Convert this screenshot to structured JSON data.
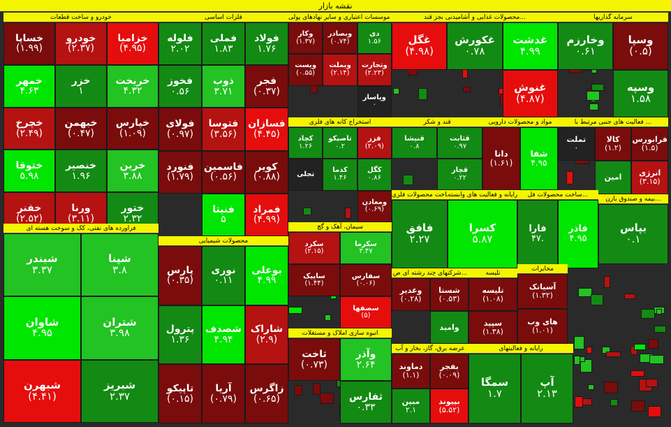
{
  "title": "نقشه بازار",
  "colors": {
    "strong_green": "#00e600",
    "light_green": "#22c322",
    "green": "#138a13",
    "neutral": "#222222",
    "dark_red": "#7a0c0c",
    "red": "#b51212",
    "bright_red": "#e60d0d"
  },
  "chart_data": {
    "type": "heatmap",
    "sectors": [
      {
        "name": "خودرو و ساخت قطعات",
        "tiles": [
          {
            "name": "خزامیا",
            "change": "(۴.۹۵)",
            "value": -4.95
          },
          {
            "name": "خودرو",
            "change": "(۲.۳۷)",
            "value": -2.37
          },
          {
            "name": "خساپا",
            "change": "(۱.۹۹)",
            "value": -1.99
          },
          {
            "name": "خریخت",
            "change": "۴.۳۲",
            "value": 4.32
          },
          {
            "name": "خزر",
            "change": "۱",
            "value": 1.0
          },
          {
            "name": "خمهر",
            "change": "۴.۶۳",
            "value": 4.63
          },
          {
            "name": "خپارس",
            "change": "(۱.۰۹)",
            "value": -1.09
          },
          {
            "name": "خبهمن",
            "change": "(۰.۴۷)",
            "value": -0.47
          },
          {
            "name": "خچرخ",
            "change": "(۲.۴۹)",
            "value": -2.49
          },
          {
            "name": "خرین",
            "change": "۳.۸۸",
            "value": 3.88
          },
          {
            "name": "خنصیر",
            "change": "۱.۹۶",
            "value": 1.96
          },
          {
            "name": "ختوقا",
            "change": "۵.۹۸",
            "value": 5.98
          },
          {
            "name": "ختور",
            "change": "۲.۳۲",
            "value": 2.32
          },
          {
            "name": "ورنا",
            "change": "(۳.۱۱)",
            "value": -3.11
          },
          {
            "name": "خفنر",
            "change": "(۲.۵۲)",
            "value": -2.52
          }
        ]
      },
      {
        "name": "فلزات اساسی",
        "tiles": [
          {
            "name": "فولاد",
            "change": "۱.۷۶",
            "value": 1.76
          },
          {
            "name": "فملی",
            "change": "۱.۸۳",
            "value": 1.83
          },
          {
            "name": "فلوله",
            "change": "۲.۰۲",
            "value": 2.02
          },
          {
            "name": "فجر",
            "change": "(۰.۳۷)",
            "value": -0.37
          },
          {
            "name": "ذوب",
            "change": "۳.۷۱",
            "value": 3.71
          },
          {
            "name": "فخوز",
            "change": "۰.۵۶",
            "value": 0.56
          },
          {
            "name": "فسازان",
            "change": "(۴.۴۵)",
            "value": -4.45
          },
          {
            "name": "فتوسا",
            "change": "(۳.۵۶)",
            "value": -3.56
          },
          {
            "name": "فولای",
            "change": "(۰.۹۷)",
            "value": -0.97
          },
          {
            "name": "کویر",
            "change": "(۰.۸۸)",
            "value": -0.88
          },
          {
            "name": "فاسمین",
            "change": "(۰.۵۶)",
            "value": -0.56
          },
          {
            "name": "فنورد",
            "change": "(۱.۷۹)",
            "value": -1.79
          },
          {
            "name": "فمراد",
            "change": "(۴.۹۹)",
            "value": -4.99
          },
          {
            "name": "فنیتا",
            "change": "۵",
            "value": 5.0
          }
        ]
      },
      {
        "name": "فراورده های نفتی، کک و سوخت هسته ای",
        "tiles": [
          {
            "name": "شپنا",
            "change": "۳.۸",
            "value": 3.8
          },
          {
            "name": "شبندر",
            "change": "۳.۳۷",
            "value": 3.37
          },
          {
            "name": "شتران",
            "change": "۳.۹۸",
            "value": 3.98
          },
          {
            "name": "شاوان",
            "change": "۴.۹۵",
            "value": 4.95
          },
          {
            "name": "شبریز",
            "change": "۲.۳۷",
            "value": 2.37
          },
          {
            "name": "شبهرن",
            "change": "(۴.۴۱)",
            "value": -4.41
          }
        ]
      },
      {
        "name": "محصولات شیمیایی",
        "tiles": [
          {
            "name": "بوعلی",
            "change": "۴.۹۹",
            "value": 4.99
          },
          {
            "name": "نوری",
            "change": "۰.۱۱",
            "value": 0.11
          },
          {
            "name": "پارس",
            "change": "(۰.۳۵)",
            "value": -0.35
          },
          {
            "name": "شاراک",
            "change": "(۲.۹)",
            "value": -2.9
          },
          {
            "name": "شصدف",
            "change": "۴.۹۴",
            "value": 4.94
          },
          {
            "name": "پترول",
            "change": "۱.۳۶",
            "value": 1.36
          },
          {
            "name": "زاگرس",
            "change": "(۰.۶۵)",
            "value": -0.65
          },
          {
            "name": "آریا",
            "change": "(۰.۷۹)",
            "value": -0.79
          },
          {
            "name": "تاپیکو",
            "change": "(۰.۱۵)",
            "value": -0.15
          }
        ]
      },
      {
        "name": "بانک ها، موسسات اعتباری و سایر نهادهای پولی",
        "tiles": [
          {
            "name": "دی",
            "change": "۱.۵۶",
            "value": 1.56
          },
          {
            "name": "وبصادر",
            "change": "(۰.۷۴)",
            "value": -0.74
          },
          {
            "name": "وکار",
            "change": "(۱.۳۷)",
            "value": -1.37
          },
          {
            "name": "وتجارت",
            "change": "(۲.۲۳)",
            "value": -2.23
          },
          {
            "name": "وبملت",
            "change": "(۲.۱۴)",
            "value": -2.14
          },
          {
            "name": "وپست",
            "change": "(۰.۵۵)",
            "value": -0.55
          },
          {
            "name": "وپاسار",
            "change": "۰",
            "value": 0.0
          }
        ]
      },
      {
        "name": "استخراج کانه های فلزی",
        "tiles": [
          {
            "name": "فزر",
            "change": "(۲.۰۹)",
            "value": -2.09
          },
          {
            "name": "تاصیکو",
            "change": "۰.۲",
            "value": 0.2
          },
          {
            "name": "کچاد",
            "change": "۱.۲۶",
            "value": 1.26
          },
          {
            "name": "کگل",
            "change": "۰.۸۶",
            "value": 0.86
          },
          {
            "name": "کدما",
            "change": "۱.۴۶",
            "value": 1.46
          },
          {
            "name": "تجلی",
            "change": "",
            "value": 0.0
          },
          {
            "name": "ومعادن",
            "change": "(۰.۶۹)",
            "value": -0.69
          }
        ]
      },
      {
        "name": "سیمان، آهک و گچ",
        "tiles": [
          {
            "name": "سکرما",
            "change": "۳.۴۷",
            "value": 3.47
          },
          {
            "name": "سکرد",
            "change": "(۲.۱۵)",
            "value": -2.15
          },
          {
            "name": "سفارس",
            "change": "(۰.۰۶)",
            "value": -0.06
          },
          {
            "name": "ساپیک",
            "change": "(۱.۴۴)",
            "value": -1.44
          },
          {
            "name": "سصفها",
            "change": "(۵)",
            "value": -5.0
          }
        ]
      },
      {
        "name": "انبوه سازی املاک و مستغلات",
        "tiles": [
          {
            "name": "وآذر",
            "change": "۲.۶۴",
            "value": 2.64
          },
          {
            "name": "ثاخت",
            "change": "(۰.۷۳)",
            "value": -0.73
          },
          {
            "name": "ثفارس",
            "change": "۰.۳۳",
            "value": 0.33
          }
        ]
      },
      {
        "name": "محصولات غذایی و آشامیدنی بجز قند...",
        "tiles": [
          {
            "name": "غدشت",
            "change": "۴.۹۹",
            "value": 4.99
          },
          {
            "name": "غکورش",
            "change": "۰.۷۸",
            "value": 0.78
          },
          {
            "name": "غگل",
            "change": "(۴.۹۸)",
            "value": -4.98
          },
          {
            "name": "غنوش",
            "change": "(۴.۸۷)",
            "value": -4.87
          }
        ]
      },
      {
        "name": "سرمایه گذاریها",
        "tiles": [
          {
            "name": "وسپا",
            "change": "(۰.۵)",
            "value": -0.5
          },
          {
            "name": "وخارزم",
            "change": "۰.۶۱",
            "value": 0.61
          },
          {
            "name": "وسپه",
            "change": "۱.۵۸",
            "value": 1.58
          }
        ]
      },
      {
        "name": "قند و شکر",
        "tiles": [
          {
            "name": "قثابت",
            "change": "۰.۹۷",
            "value": 0.97
          },
          {
            "name": "قنیشا",
            "change": "۰.۸",
            "value": 0.8
          },
          {
            "name": "قچار",
            "change": "۰.۲۲",
            "value": 0.22
          }
        ]
      },
      {
        "name": "مواد و محصولات دارویی",
        "tiles": [
          {
            "name": "شفا",
            "change": "۴.۹۵",
            "value": 4.95
          },
          {
            "name": "دانا",
            "change": "(۱.۶۱)",
            "value": -1.61
          }
        ]
      },
      {
        "name": "فعالیت های جنبی مرتبط با ...",
        "tiles": [
          {
            "name": "فرابورس",
            "change": "(۱.۵)",
            "value": -1.5
          },
          {
            "name": "کالا",
            "change": "(۱.۲)",
            "value": -1.2
          },
          {
            "name": "تملت",
            "change": "۰",
            "value": 0.0
          },
          {
            "name": "انرژی",
            "change": "(۳.۱۵)",
            "value": -3.15
          },
          {
            "name": "امین",
            "change": "",
            "value": 1.0
          }
        ]
      },
      {
        "name": "ساخت محصولات فلزی",
        "tiles": [
          {
            "name": "فافق",
            "change": "۲.۲۷",
            "value": 2.27
          }
        ]
      },
      {
        "name": "رایانه و فعالیت های وابسته",
        "tiles": [
          {
            "name": "کسرا",
            "change": "۵.۸۷",
            "value": 5.87
          }
        ]
      },
      {
        "name": "ساخت محصولات فل...",
        "tiles": [
          {
            "name": "فاذر",
            "change": "۴.۹۵",
            "value": 4.95
          },
          {
            "name": "فارا",
            "change": "۴۷.",
            "value": 0.47
          }
        ]
      },
      {
        "name": "بیمه و صندوق بازن...",
        "tiles": [
          {
            "name": "بپاس",
            "change": "۰.۱",
            "value": 0.1
          }
        ]
      },
      {
        "name": "شرکتهای چند رشته ای ص...",
        "tiles": [
          {
            "name": "شستا",
            "change": "(۰.۵۳)",
            "value": -0.53
          },
          {
            "name": "وغدیر",
            "change": "(۰.۲۸)",
            "value": -0.28
          },
          {
            "name": "وامید",
            "change": "",
            "value": 1.0
          }
        ]
      },
      {
        "name": "مخابرات",
        "tiles": [
          {
            "name": "آسیاتک",
            "change": "(۱.۳۲)",
            "value": -1.32
          },
          {
            "name": "های وب",
            "change": "(۱.۰۱)",
            "value": -1.01
          }
        ]
      },
      {
        "name": "تلیسه",
        "tiles": [
          {
            "name": "تلیسه",
            "change": "(۱.۰۸)",
            "value": -1.08
          },
          {
            "name": "سپید",
            "change": "(۱.۳۸)",
            "value": -1.38
          }
        ]
      },
      {
        "name": "عرضه برق، گاز، بخار و آب",
        "tiles": [
          {
            "name": "بفجر",
            "change": "(۰.۰۹)",
            "value": -0.09
          },
          {
            "name": "دماوند",
            "change": "(۱.۱)",
            "value": -1.1
          },
          {
            "name": "بپیوند",
            "change": "(۵.۵۲)",
            "value": -5.52
          },
          {
            "name": "مبین",
            "change": "۲.۱",
            "value": 2.1
          }
        ]
      },
      {
        "name": "رایانه و فعالیتهای",
        "tiles": [
          {
            "name": "آپ",
            "change": "۲.۱۳",
            "value": 2.13
          },
          {
            "name": "سمگا",
            "change": "۱.۷",
            "value": 1.7
          }
        ]
      }
    ]
  }
}
